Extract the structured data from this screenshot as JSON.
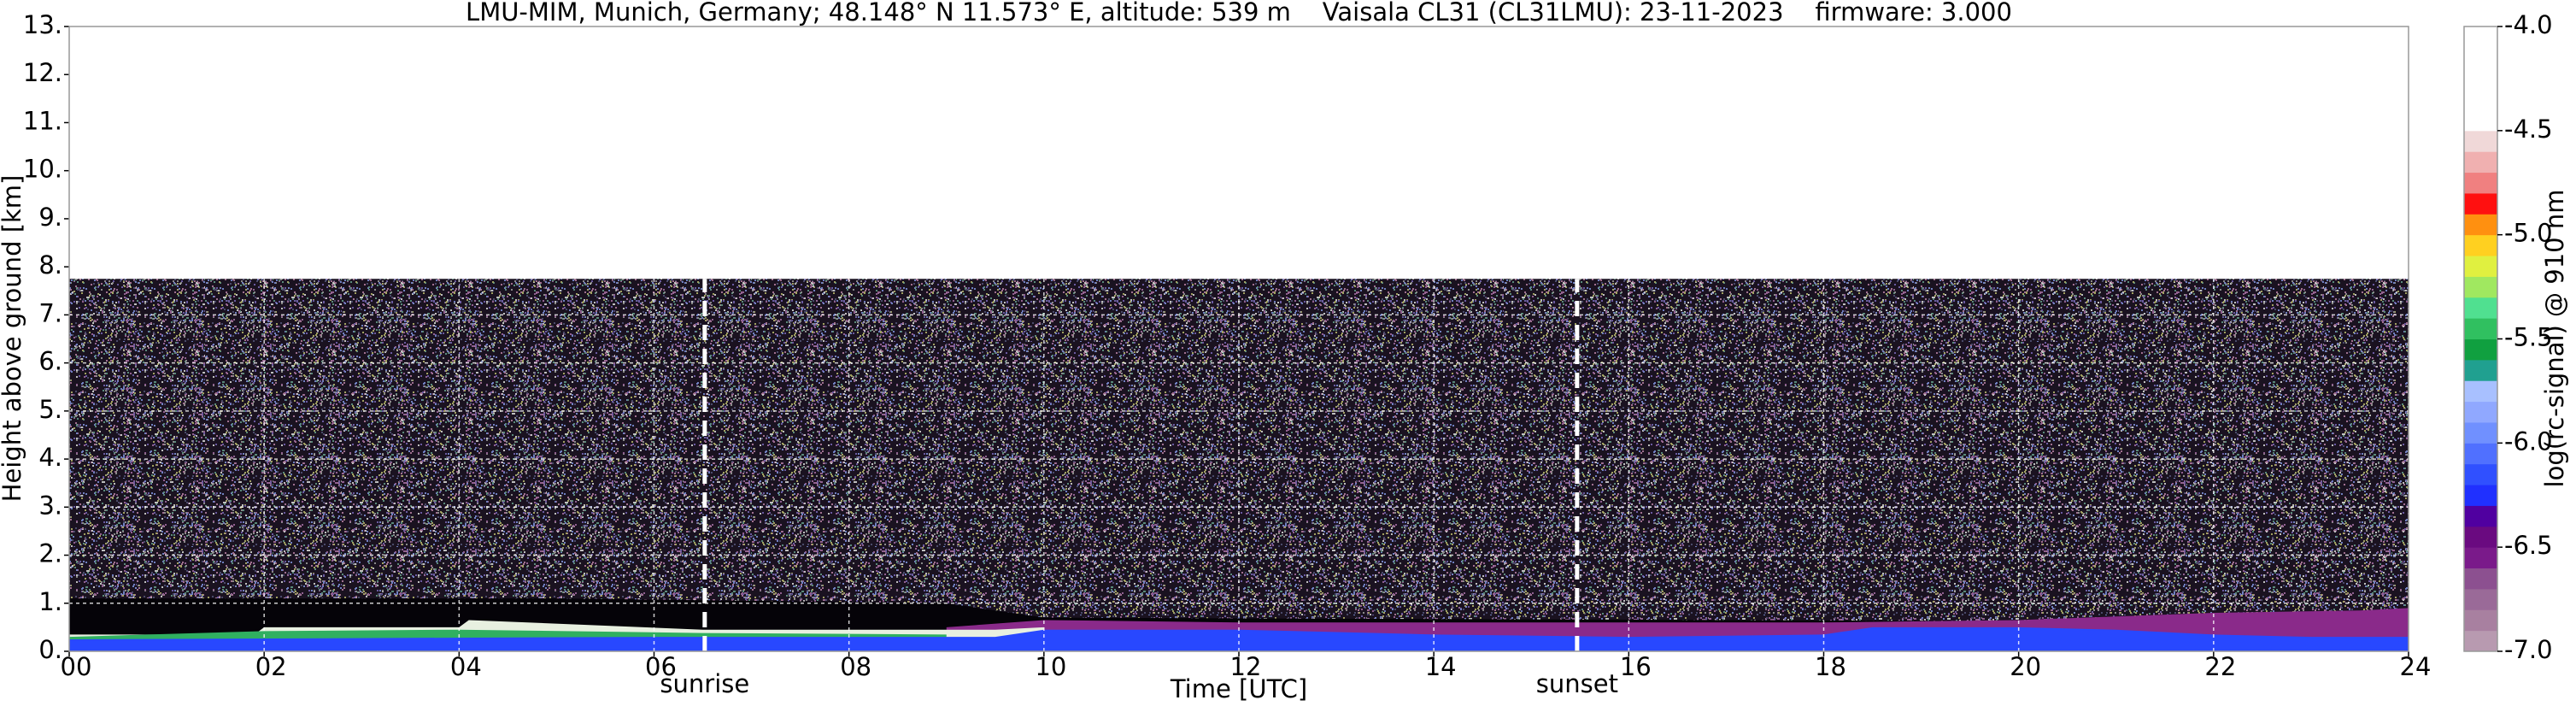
{
  "chart_data": {
    "type": "layers",
    "title": "LMU-MIM, Munich, Germany; 48.148° N 11.573° E, altitude: 539 m    Vaisala CL31 (CL31LMU): 23-11-2023    firmware: 3.000",
    "xlabel": "Time [UTC]",
    "ylabel": "Height above ground [km]",
    "xlim": [
      0,
      24
    ],
    "ylim": [
      0,
      13
    ],
    "xticks": [
      {
        "value": 0,
        "label": "00"
      },
      {
        "value": 2,
        "label": "02"
      },
      {
        "value": 4,
        "label": "04"
      },
      {
        "value": 6,
        "label": "06"
      },
      {
        "value": 8,
        "label": "08"
      },
      10,
      12,
      14,
      16,
      18,
      20,
      22,
      24
    ],
    "yticks": [
      {
        "value": 0,
        "label": "0."
      },
      {
        "value": 1,
        "label": "1."
      },
      {
        "value": 2,
        "label": "2."
      },
      {
        "value": 3,
        "label": "3."
      },
      {
        "value": 4,
        "label": "4."
      },
      {
        "value": 5,
        "label": "5."
      },
      {
        "value": 6,
        "label": "6."
      },
      {
        "value": 7,
        "label": "7."
      },
      {
        "value": 8,
        "label": "8."
      },
      {
        "value": 9,
        "label": "9."
      },
      {
        "value": 10,
        "label": "10."
      },
      {
        "value": 11,
        "label": "11."
      },
      {
        "value": 12,
        "label": "12."
      },
      {
        "value": 13,
        "label": "13."
      }
    ],
    "grid": true,
    "layers": [
      {
        "color": "#1a1220",
        "x": [
          0,
          24
        ],
        "top": [
          7.75,
          7.75
        ]
      },
      {
        "color": "#050308",
        "x": [
          0,
          5,
          9,
          10,
          24
        ],
        "top": [
          1.1,
          1.1,
          1.0,
          0.7,
          0.6
        ]
      },
      {
        "color": "#8a2a8a",
        "x": [
          9,
          10,
          12,
          16,
          18,
          20,
          22,
          23.5,
          24
        ],
        "top": [
          0.5,
          0.65,
          0.6,
          0.6,
          0.6,
          0.65,
          0.8,
          0.85,
          0.9
        ]
      },
      {
        "color": "#e8f0e0",
        "x": [
          0,
          1.9,
          2,
          4,
          4.1,
          6.5,
          9.5,
          10
        ],
        "top": [
          0.35,
          0.35,
          0.5,
          0.5,
          0.65,
          0.45,
          0.45,
          0.5
        ]
      },
      {
        "color": "#30b060",
        "x": [
          0,
          2,
          4,
          6.5,
          9
        ],
        "top": [
          0.3,
          0.42,
          0.45,
          0.38,
          0.35
        ]
      },
      {
        "color": "#2848ff",
        "x": [
          0,
          6,
          9.5,
          10,
          12,
          14,
          16,
          18,
          18.5,
          20,
          21,
          22,
          23,
          24
        ],
        "top": [
          0.25,
          0.3,
          0.3,
          0.45,
          0.45,
          0.35,
          0.3,
          0.35,
          0.5,
          0.5,
          0.45,
          0.35,
          0.3,
          0.3
        ]
      }
    ],
    "annotations": [
      {
        "text": "sunrise",
        "x": 6.52
      },
      {
        "text": "sunset",
        "x": 15.47
      }
    ],
    "marker_top": 7.75,
    "colorbar": {
      "label": "log(rc-signal) @ 910 nm",
      "clim": [
        -7,
        -4
      ],
      "ticks": [
        {
          "value": -4,
          "label": "-4.0"
        },
        -4.5,
        {
          "value": -5,
          "label": "-5.0"
        },
        -5.5,
        {
          "value": -6,
          "label": "-6.0"
        },
        -6.5,
        {
          "value": -7,
          "label": "-7.0"
        }
      ],
      "colors": [
        "#b89ab0",
        "#a880a0",
        "#9a6a98",
        "#8c5090",
        "#7a1a8a",
        "#6a0a80",
        "#5000a0",
        "#2030ff",
        "#3050ff",
        "#5070ff",
        "#7090ff",
        "#90a8ff",
        "#a8c0ff",
        "#20a090",
        "#10a040",
        "#30c060",
        "#50e090",
        "#a0e860",
        "#e0f040",
        "#ffd020",
        "#ff9010",
        "#ff1010",
        "#f08080",
        "#f0b0b0",
        "#f0d8d8",
        "#ffffff",
        "#ffffff",
        "#ffffff",
        "#ffffff",
        "#ffffff"
      ]
    }
  }
}
